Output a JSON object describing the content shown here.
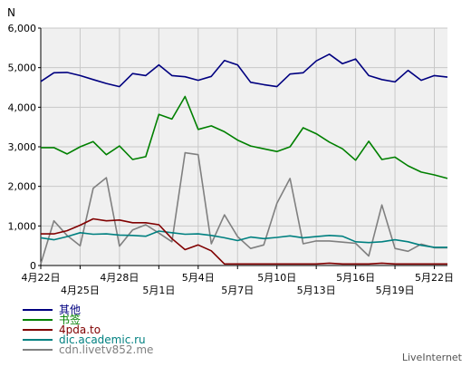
{
  "chart_data": {
    "type": "line",
    "ylabel": "N",
    "ylim": [
      0,
      6000
    ],
    "y_ticks": [
      "0",
      "1,000",
      "2,000",
      "3,000",
      "4,000",
      "5,000",
      "6,000"
    ],
    "x_tick_labels": [
      {
        "i": 0,
        "label": "4月22日",
        "row": 0
      },
      {
        "i": 3,
        "label": "4月25日",
        "row": 1
      },
      {
        "i": 6,
        "label": "4月28日",
        "row": 0
      },
      {
        "i": 9,
        "label": "5月1日",
        "row": 1
      },
      {
        "i": 12,
        "label": "5月4日",
        "row": 0
      },
      {
        "i": 15,
        "label": "5月7日",
        "row": 1
      },
      {
        "i": 18,
        "label": "5月10日",
        "row": 0
      },
      {
        "i": 21,
        "label": "5月13日",
        "row": 1
      },
      {
        "i": 24,
        "label": "5月16日",
        "row": 0
      },
      {
        "i": 27,
        "label": "5月19日",
        "row": 1
      },
      {
        "i": 30,
        "label": "5月22日",
        "row": 0
      }
    ],
    "grid": true,
    "legend_placement": "bottom-left",
    "series": [
      {
        "name": "其他",
        "color": "#000080",
        "values": [
          4650,
          4870,
          4880,
          4800,
          4700,
          4600,
          4520,
          4850,
          4800,
          5070,
          4800,
          4770,
          4680,
          4780,
          5180,
          5070,
          4630,
          4570,
          4520,
          4840,
          4870,
          5170,
          5340,
          5100,
          5220,
          4800,
          4700,
          4640,
          4930,
          4680,
          4800,
          4760
        ]
      },
      {
        "name": "书签",
        "color": "#008000",
        "values": [
          2980,
          2980,
          2820,
          3000,
          3130,
          2800,
          3020,
          2680,
          2750,
          3820,
          3700,
          4270,
          3440,
          3530,
          3380,
          3170,
          3020,
          2950,
          2880,
          3000,
          3480,
          3330,
          3120,
          2950,
          2660,
          3140,
          2680,
          2740,
          2520,
          2360,
          2290,
          2200
        ]
      },
      {
        "name": "4pda.to",
        "color": "#800000",
        "values": [
          800,
          800,
          880,
          1020,
          1180,
          1130,
          1150,
          1080,
          1080,
          1030,
          680,
          400,
          520,
          370,
          40,
          40,
          40,
          40,
          40,
          40,
          40,
          40,
          60,
          40,
          40,
          40,
          60,
          40,
          40,
          40,
          40,
          40
        ]
      },
      {
        "name": "dic.academic.ru",
        "color": "#008080",
        "values": [
          700,
          650,
          730,
          830,
          790,
          800,
          770,
          760,
          740,
          870,
          830,
          790,
          800,
          760,
          700,
          630,
          720,
          680,
          710,
          750,
          700,
          730,
          760,
          740,
          600,
          580,
          600,
          650,
          600,
          510,
          460,
          460
        ]
      },
      {
        "name": "cdn.livetv852.me",
        "color": "#808080",
        "values": [
          40,
          1130,
          760,
          500,
          1950,
          2220,
          490,
          900,
          1030,
          820,
          600,
          2850,
          2800,
          550,
          1280,
          730,
          430,
          520,
          1570,
          2200,
          550,
          620,
          620,
          590,
          560,
          240,
          1530,
          430,
          360,
          540,
          450,
          450
        ]
      }
    ]
  },
  "branding": {
    "text": "LiveInternet"
  }
}
